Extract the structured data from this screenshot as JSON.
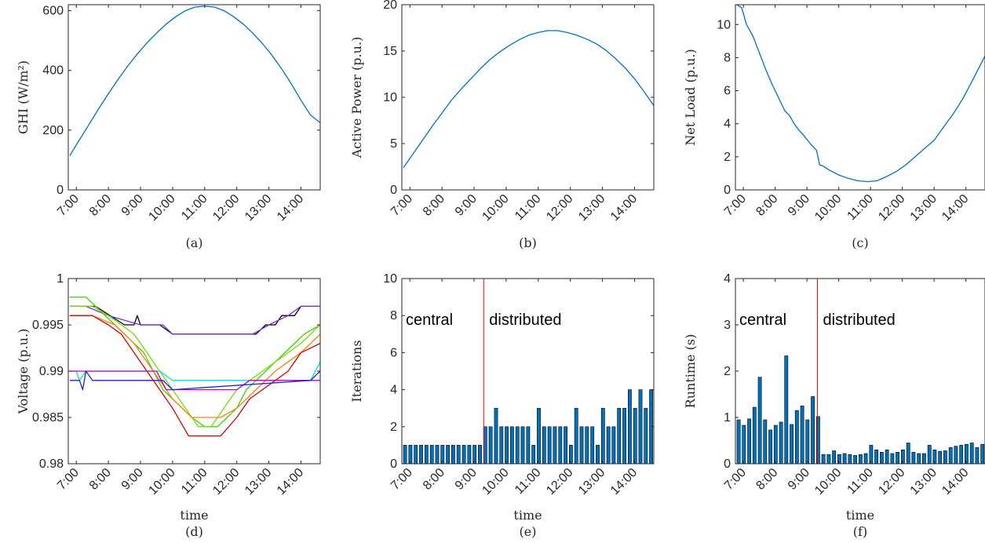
{
  "chart_data": [
    {
      "panel": "a",
      "type": "line",
      "caption": "(a)",
      "xlabel": "",
      "ylabel": "GHI",
      "ylabel_unit": "(W/m²)",
      "xlim": [
        6.75,
        14.6
      ],
      "ylim": [
        0,
        620
      ],
      "yticks": [
        0,
        200,
        400,
        600
      ],
      "series": [
        {
          "color": "#0072BD",
          "x": [
            6.8,
            7.1,
            7.4,
            7.7,
            8.0,
            8.3,
            8.6,
            8.9,
            9.2,
            9.5,
            9.8,
            10.1,
            10.4,
            10.7,
            11.0,
            11.3,
            11.6,
            11.9,
            12.2,
            12.5,
            12.8,
            13.1,
            13.4,
            13.7,
            14.0,
            14.3,
            14.6
          ],
          "y": [
            115,
            168,
            220,
            272,
            322,
            370,
            414,
            455,
            492,
            525,
            555,
            580,
            600,
            612,
            615,
            612,
            600,
            580,
            555,
            525,
            490,
            450,
            405,
            355,
            300,
            250,
            225
          ]
        }
      ]
    },
    {
      "panel": "b",
      "type": "line",
      "caption": "(b)",
      "xlabel": "",
      "ylabel": "Active Power (p.u.)",
      "xlim": [
        6.75,
        14.6
      ],
      "ylim": [
        0,
        20
      ],
      "yticks": [
        0,
        5,
        10,
        15,
        20
      ],
      "series": [
        {
          "color": "#0072BD",
          "x": [
            6.8,
            7.1,
            7.4,
            7.7,
            8.0,
            8.3,
            8.6,
            8.9,
            9.2,
            9.5,
            9.8,
            10.1,
            10.4,
            10.7,
            11.0,
            11.3,
            11.6,
            11.9,
            12.2,
            12.5,
            12.8,
            13.1,
            13.4,
            13.7,
            14.0,
            14.3,
            14.6
          ],
          "y": [
            2.4,
            3.9,
            5.4,
            6.9,
            8.3,
            9.7,
            10.9,
            12.0,
            13.1,
            14.1,
            14.9,
            15.6,
            16.2,
            16.7,
            17.0,
            17.2,
            17.2,
            17.0,
            16.7,
            16.3,
            15.8,
            15.1,
            14.2,
            13.2,
            12.0,
            10.6,
            9.1
          ]
        }
      ]
    },
    {
      "panel": "c",
      "type": "line",
      "caption": "(c)",
      "xlabel": "",
      "ylabel": "Net Load (p.u.)",
      "xlim": [
        6.75,
        14.6
      ],
      "ylim": [
        0,
        11.2
      ],
      "yticks": [
        0,
        2,
        4,
        6,
        8,
        10
      ],
      "series": [
        {
          "color": "#0072BD",
          "x": [
            6.8,
            6.95,
            7.1,
            7.3,
            7.5,
            7.7,
            7.9,
            8.1,
            8.3,
            8.45,
            8.6,
            8.75,
            8.9,
            9.1,
            9.3,
            9.4,
            9.5,
            9.7,
            10.0,
            10.3,
            10.6,
            10.9,
            11.2,
            11.5,
            11.8,
            12.1,
            12.4,
            12.7,
            13.0,
            13.3,
            13.6,
            13.9,
            14.2,
            14.6
          ],
          "y": [
            11.2,
            11.0,
            10.0,
            9.3,
            8.3,
            7.3,
            6.4,
            5.6,
            4.8,
            4.5,
            4.0,
            3.6,
            3.3,
            2.8,
            2.4,
            1.5,
            1.45,
            1.2,
            0.9,
            0.7,
            0.55,
            0.5,
            0.55,
            0.8,
            1.1,
            1.5,
            2.0,
            2.5,
            3.0,
            3.8,
            4.6,
            5.5,
            6.6,
            8.1
          ]
        }
      ]
    },
    {
      "panel": "d",
      "type": "line",
      "caption": "(d)",
      "xlabel": "time",
      "ylabel": "Voltage (p.u.)",
      "xlim": [
        6.75,
        14.6
      ],
      "ylim": [
        0.98,
        1.0
      ],
      "yticks": [
        0.98,
        0.985,
        0.99,
        0.995,
        1
      ],
      "series": [
        {
          "color": "#000000",
          "x": [
            6.8,
            7.3,
            7.6,
            8.5,
            8.8,
            8.9,
            9.0,
            9.6,
            10.0,
            11.0,
            12.0,
            12.6,
            12.9,
            13.2,
            13.4,
            13.8,
            14.0,
            14.6
          ],
          "y": [
            0.997,
            0.997,
            0.997,
            0.995,
            0.995,
            0.996,
            0.995,
            0.995,
            0.994,
            0.994,
            0.994,
            0.994,
            0.995,
            0.995,
            0.996,
            0.996,
            0.997,
            0.997
          ]
        },
        {
          "color": "#7E2FDD",
          "x": [
            6.8,
            7.3,
            8.0,
            9.0,
            9.7,
            10.0,
            12.5,
            13.0,
            13.6,
            14.0,
            14.6
          ],
          "y": [
            0.997,
            0.997,
            0.996,
            0.995,
            0.995,
            0.994,
            0.994,
            0.995,
            0.996,
            0.997,
            0.997
          ]
        },
        {
          "color": "#3CD400",
          "x": [
            6.8,
            7.3,
            7.6,
            7.9,
            8.2,
            8.5,
            8.8,
            9.1,
            9.4,
            9.7,
            10.0,
            10.3,
            10.6,
            11.0,
            11.4,
            11.7,
            12.0,
            12.3,
            12.6,
            12.9,
            13.2,
            13.5,
            13.8,
            14.1,
            14.6
          ],
          "y": [
            0.998,
            0.998,
            0.997,
            0.996,
            0.995,
            0.994,
            0.993,
            0.992,
            0.99,
            0.988,
            0.987,
            0.986,
            0.985,
            0.984,
            0.984,
            0.985,
            0.986,
            0.988,
            0.989,
            0.99,
            0.991,
            0.992,
            0.993,
            0.994,
            0.995
          ]
        },
        {
          "color": "#77DD00",
          "x": [
            6.8,
            7.5,
            8.0,
            8.4,
            8.8,
            9.2,
            9.6,
            10.0,
            10.4,
            10.8,
            11.2,
            11.6,
            12.0,
            12.4,
            12.8,
            13.2,
            13.6,
            14.0,
            14.6
          ],
          "y": [
            0.997,
            0.997,
            0.996,
            0.995,
            0.994,
            0.992,
            0.99,
            0.988,
            0.986,
            0.984,
            0.984,
            0.986,
            0.988,
            0.989,
            0.99,
            0.991,
            0.992,
            0.993,
            0.995
          ]
        },
        {
          "color": "#FF7F0E",
          "x": [
            6.8,
            7.5,
            8.2,
            8.8,
            9.2,
            9.6,
            10.0,
            10.3,
            10.6,
            11.5,
            12.0,
            12.3,
            12.6,
            12.9,
            13.2,
            13.6,
            14.0,
            14.6
          ],
          "y": [
            0.996,
            0.996,
            0.995,
            0.993,
            0.991,
            0.989,
            0.987,
            0.986,
            0.985,
            0.985,
            0.986,
            0.987,
            0.988,
            0.989,
            0.99,
            0.991,
            0.992,
            0.994
          ]
        },
        {
          "color": "#DD0000",
          "x": [
            6.8,
            7.5,
            8.0,
            8.4,
            8.8,
            9.2,
            9.6,
            10.0,
            10.5,
            11.5,
            12.0,
            12.4,
            12.8,
            13.2,
            13.6,
            14.0,
            14.6
          ],
          "y": [
            0.996,
            0.996,
            0.995,
            0.994,
            0.992,
            0.99,
            0.988,
            0.986,
            0.983,
            0.983,
            0.985,
            0.987,
            0.988,
            0.989,
            0.99,
            0.992,
            0.993
          ]
        },
        {
          "color": "#00E0E0",
          "x": [
            6.8,
            7.0,
            7.1,
            7.3,
            9.6,
            10.0,
            14.3,
            14.6
          ],
          "y": [
            0.99,
            0.99,
            0.989,
            0.99,
            0.99,
            0.989,
            0.989,
            0.991
          ]
        },
        {
          "color": "#C000C0",
          "x": [
            6.8,
            7.0,
            7.3,
            9.5,
            9.8,
            12.0,
            12.4,
            14.6
          ],
          "y": [
            0.99,
            0.99,
            0.99,
            0.99,
            0.988,
            0.988,
            0.989,
            0.989
          ]
        },
        {
          "color": "#2020CC",
          "x": [
            6.8,
            7.1,
            7.2,
            7.3,
            7.5,
            9.7,
            10.0,
            14.3,
            14.6
          ],
          "y": [
            0.989,
            0.989,
            0.988,
            0.99,
            0.989,
            0.989,
            0.988,
            0.989,
            0.99
          ]
        }
      ]
    },
    {
      "panel": "e",
      "type": "bar",
      "caption": "(e)",
      "xlabel": "time",
      "ylabel": "Iterations",
      "xlim": [
        6.75,
        14.6
      ],
      "ylim": [
        0,
        10
      ],
      "yticks": [
        0,
        2,
        4,
        6,
        8,
        10
      ],
      "x_start": 6.85,
      "x_step": 0.1667,
      "values": [
        1,
        1,
        1,
        1,
        1,
        1,
        1,
        1,
        1,
        1,
        1,
        1,
        1,
        1,
        1,
        2,
        2,
        3,
        2,
        2,
        2,
        2,
        2,
        2,
        1,
        3,
        2,
        2,
        2,
        2,
        2,
        1,
        3,
        2,
        2,
        2,
        1,
        3,
        2,
        2,
        3,
        3,
        4,
        3,
        4,
        3,
        4
      ],
      "split_x": 9.3,
      "bar_color": "#0072BD",
      "split_color": "#FF0000",
      "annotations": [
        "central",
        "distributed"
      ]
    },
    {
      "panel": "f",
      "type": "bar",
      "caption": "(f)",
      "xlabel": "time",
      "ylabel": "Runtime (s)",
      "xlim": [
        6.75,
        14.6
      ],
      "ylim": [
        0,
        4
      ],
      "yticks": [
        0,
        1,
        2,
        3,
        4
      ],
      "x_start": 6.85,
      "x_step": 0.1667,
      "values": [
        0.95,
        0.83,
        0.97,
        1.22,
        1.87,
        0.95,
        0.73,
        0.83,
        0.9,
        2.33,
        0.85,
        1.15,
        1.25,
        0.95,
        1.45,
        1.02,
        0.2,
        0.2,
        0.28,
        0.2,
        0.22,
        0.2,
        0.18,
        0.2,
        0.22,
        0.4,
        0.3,
        0.25,
        0.3,
        0.22,
        0.25,
        0.3,
        0.45,
        0.25,
        0.22,
        0.22,
        0.4,
        0.3,
        0.27,
        0.28,
        0.35,
        0.38,
        0.4,
        0.42,
        0.45,
        0.35,
        0.42
      ],
      "split_x": 9.33,
      "bar_color": "#0072BD",
      "split_color": "#FF0000",
      "annotations": [
        "central",
        "distributed"
      ]
    }
  ],
  "xticks": [
    {
      "v": 7,
      "label": "7:00"
    },
    {
      "v": 8,
      "label": "8:00"
    },
    {
      "v": 9,
      "label": "9:00"
    },
    {
      "v": 10,
      "label": "10:00"
    },
    {
      "v": 11,
      "label": "11:00"
    },
    {
      "v": 12,
      "label": "12:00"
    },
    {
      "v": 13,
      "label": "13:00"
    },
    {
      "v": 14,
      "label": "14:00"
    }
  ]
}
